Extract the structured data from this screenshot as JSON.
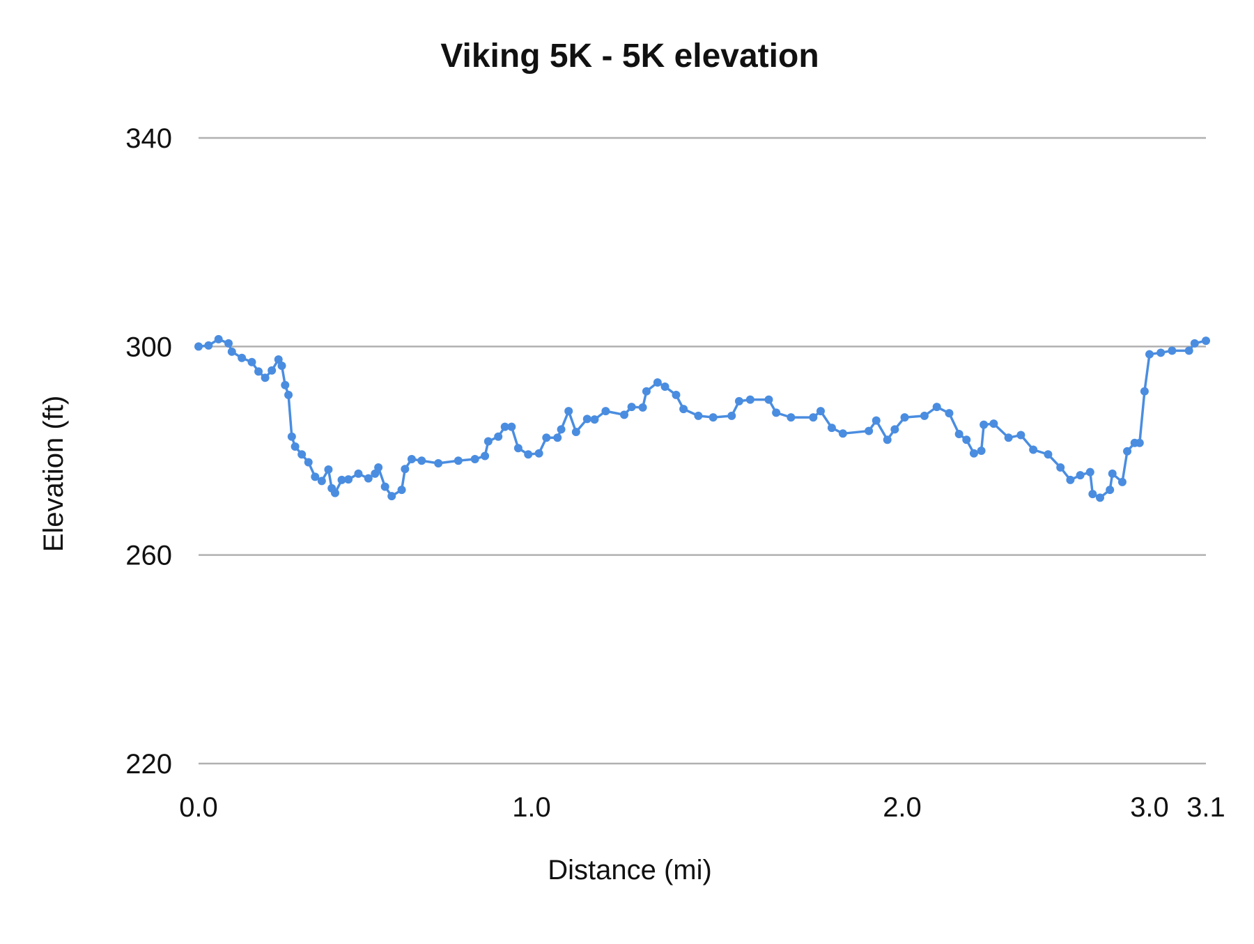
{
  "chart_data": {
    "type": "line",
    "title": "Viking 5K - 5K elevation",
    "xlabel": "Distance (mi)",
    "ylabel": "Elevation (ft)",
    "ylim": [
      220,
      340
    ],
    "yticks": [
      "340",
      "300",
      "260",
      "220"
    ],
    "xticks": [
      "0.0",
      "1.0",
      "2.0",
      "3.0",
      "3.1"
    ],
    "grid": true,
    "markers": true,
    "color": "#4a8de0",
    "gridColor": "#b0b0b0",
    "series": [
      {
        "x": [
          0.0,
          0.03,
          0.06,
          0.09,
          0.1,
          0.13,
          0.16,
          0.18,
          0.2,
          0.22,
          0.24,
          0.25,
          0.26,
          0.27,
          0.28,
          0.29,
          0.31,
          0.33,
          0.35,
          0.37,
          0.39,
          0.4,
          0.41,
          0.43,
          0.45,
          0.48,
          0.51,
          0.53,
          0.54,
          0.56,
          0.58,
          0.61,
          0.62,
          0.64,
          0.67,
          0.72,
          0.78,
          0.83,
          0.86,
          0.87,
          0.9,
          0.92,
          0.94,
          0.96,
          0.99,
          1.02,
          1.04,
          1.07,
          1.08,
          1.1,
          1.12,
          1.15,
          1.17,
          1.2,
          1.25,
          1.27,
          1.3,
          1.31,
          1.34,
          1.36,
          1.39,
          1.41,
          1.45,
          1.49,
          1.54,
          1.56,
          1.59,
          1.64,
          1.66,
          1.7,
          1.76,
          1.78,
          1.81,
          1.84,
          1.91,
          1.93,
          1.96,
          1.98,
          2.01,
          2.09,
          2.14,
          2.19,
          2.23,
          2.26,
          2.29,
          2.32,
          2.33,
          2.37,
          2.43,
          2.48,
          2.53,
          2.59,
          2.64,
          2.68,
          2.72,
          2.76,
          2.77,
          2.8,
          2.84,
          2.85,
          2.89,
          2.91,
          2.94,
          2.96,
          2.98,
          3.0,
          3.02,
          3.04,
          3.07,
          3.08,
          3.1
        ],
        "y": [
          300.0,
          300.2,
          301.4,
          300.6,
          299.0,
          297.8,
          297.0,
          295.2,
          294.0,
          295.4,
          297.5,
          296.3,
          292.6,
          290.7,
          282.7,
          280.8,
          279.3,
          277.8,
          275.0,
          274.2,
          276.4,
          272.8,
          271.9,
          274.4,
          274.5,
          275.6,
          274.7,
          275.6,
          276.8,
          273.1,
          271.3,
          272.5,
          276.5,
          278.4,
          278.1,
          277.6,
          278.1,
          278.4,
          279.0,
          281.8,
          282.7,
          284.6,
          284.6,
          280.5,
          279.3,
          279.5,
          282.5,
          282.5,
          284.1,
          287.6,
          283.6,
          286.1,
          286.0,
          287.6,
          286.9,
          288.4,
          288.3,
          291.4,
          293.1,
          292.3,
          290.7,
          288.0,
          286.7,
          286.4,
          286.7,
          289.5,
          289.8,
          289.8,
          287.3,
          286.4,
          286.4,
          287.6,
          284.4,
          283.3,
          283.8,
          285.8,
          282.1,
          284.1,
          286.4,
          286.7,
          288.4,
          287.2,
          283.2,
          282.1,
          279.5,
          280.0,
          285.0,
          285.2,
          282.5,
          283.0,
          280.2,
          279.3,
          276.8,
          274.4,
          275.3,
          275.9,
          271.7,
          271.0,
          272.5,
          275.6,
          274.0,
          279.9,
          281.5,
          281.5,
          291.4,
          298.5,
          298.8,
          299.2,
          299.2,
          300.6,
          301.1
        ]
      }
    ]
  }
}
